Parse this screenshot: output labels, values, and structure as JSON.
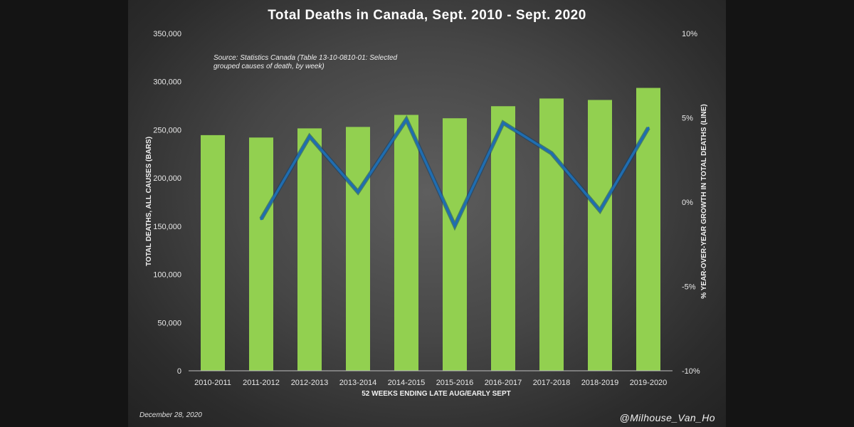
{
  "chart_data": {
    "type": "bar+line",
    "title": "Total Deaths in Canada, Sept. 2010 - Sept. 2020",
    "source_lines": [
      "Source: Statistics Canada (Table 13-10-0810-01: Selected",
      "grouped causes of death, by week)"
    ],
    "xlabel": "52 WEEKS ENDING LATE AUG/EARLY SEPT",
    "ylabel_left": "TOTAL DEATHS, ALL CAUSES (BARS)",
    "ylabel_right": "% YEAR-OVER-YEAR GROWTH IN TOTAL DEATHS (LINE)",
    "categories": [
      "2010-2011",
      "2011-2012",
      "2012-2013",
      "2013-2014",
      "2014-2015",
      "2015-2016",
      "2016-2017",
      "2017-2018",
      "2018-2019",
      "2019-2020"
    ],
    "series": [
      {
        "name": "Total deaths, all causes",
        "kind": "bar",
        "axis": "left",
        "color": "#92d050",
        "values": [
          244500,
          242000,
          251500,
          253000,
          265500,
          262000,
          274500,
          282500,
          281000,
          293500
        ]
      },
      {
        "name": "% year-over-year growth",
        "kind": "line",
        "axis": "right",
        "color": "#1f6db0",
        "values": [
          null,
          -1.0,
          3.9,
          0.6,
          4.9,
          -1.4,
          4.7,
          2.9,
          -0.5,
          4.4
        ]
      }
    ],
    "ylim_left": [
      0,
      350000
    ],
    "yticks_left": [
      "0",
      "50,000",
      "100,000",
      "150,000",
      "200,000",
      "250,000",
      "300,000",
      "350,000"
    ],
    "ylim_right": [
      -10,
      10
    ],
    "yticks_right": [
      "-10%",
      "-5%",
      "0%",
      "5%",
      "10%"
    ],
    "grid": false
  },
  "footer": {
    "date": "December 28, 2020",
    "handle": "@Milhouse_Van_Ho"
  }
}
